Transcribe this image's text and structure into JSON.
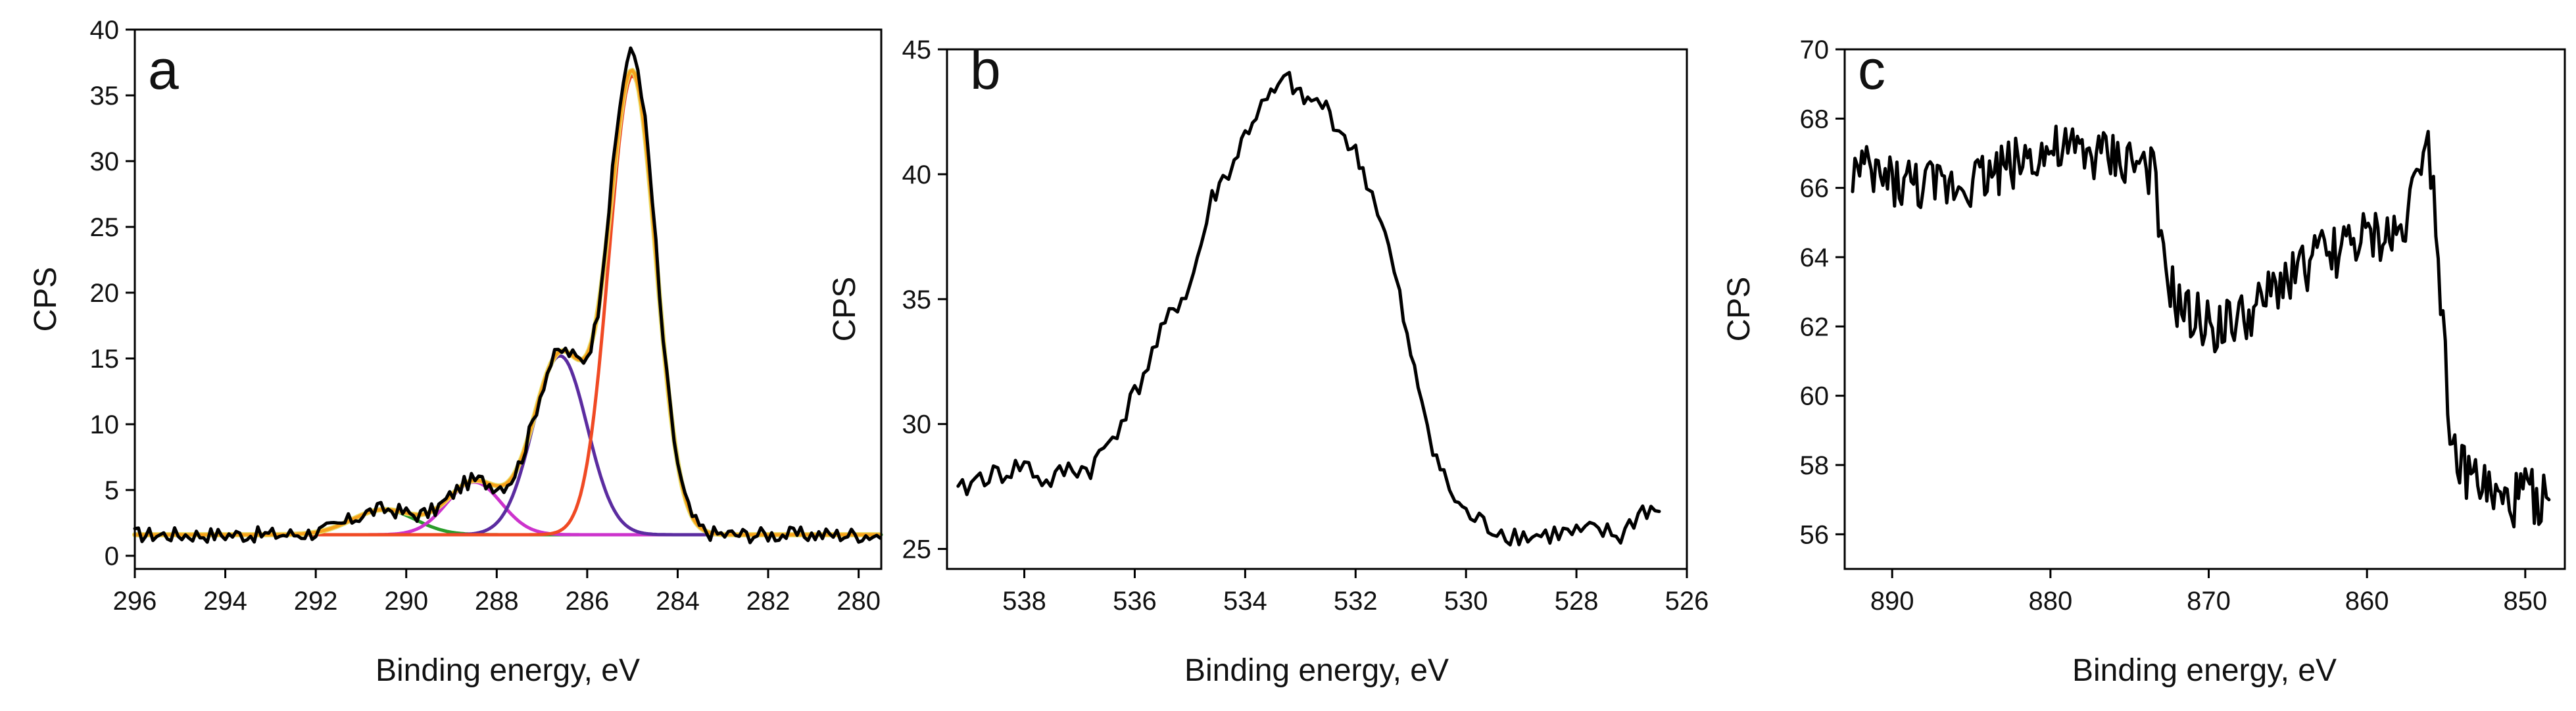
{
  "chart_data": [
    {
      "type": "line",
      "panel_label": "a",
      "xlabel": "Binding energy, eV",
      "ylabel": "CPS",
      "xlim": [
        296,
        279.5
      ],
      "ylim": [
        -1,
        40
      ],
      "x_reversed": true,
      "xticks": [
        296,
        294,
        292,
        290,
        288,
        286,
        284,
        282,
        280
      ],
      "yticks": [
        0,
        5,
        10,
        15,
        20,
        25,
        30,
        35,
        40
      ],
      "baseline": 1.6,
      "components": [
        {
          "color": "#2a9d2a",
          "center": 290.5,
          "height": 1.9,
          "sigma": 0.7
        },
        {
          "color": "#cc33cc",
          "center": 288.5,
          "height": 4.0,
          "sigma": 0.6
        },
        {
          "color": "#5b2ca0",
          "center": 286.6,
          "height": 13.6,
          "sigma": 0.6
        },
        {
          "color": "#f04a24",
          "center": 285.0,
          "height": 34.9,
          "sigma": 0.52
        }
      ],
      "envelope_colors": [
        "#f7a21b",
        "#e8e070"
      ],
      "data_color": "#000000",
      "data_peak": {
        "x": 284.9,
        "y": 38.2
      }
    },
    {
      "type": "line",
      "panel_label": "b",
      "xlabel": "Binding energy, eV",
      "ylabel": "CPS",
      "xlim": [
        539.4,
        526
      ],
      "ylim": [
        24.2,
        45
      ],
      "x_reversed": true,
      "xticks": [
        538,
        536,
        534,
        532,
        530,
        528,
        526
      ],
      "yticks": [
        25,
        30,
        35,
        40,
        45
      ],
      "data_color": "#000000",
      "series": [
        {
          "x": [
            539.2,
            538.8,
            538.4,
            538.0,
            537.6,
            537.2,
            536.8,
            536.4,
            536.0,
            535.6,
            535.3,
            535.0,
            534.8,
            534.6,
            534.4,
            534.2,
            534.0,
            533.8,
            533.6,
            533.4,
            533.2,
            533.0,
            532.8,
            532.6,
            532.4,
            532.2,
            532.0,
            531.8,
            531.6,
            531.4,
            531.2,
            531.0,
            530.8,
            530.6,
            530.4,
            530.2,
            530.0,
            529.6,
            529.2,
            528.8,
            528.4,
            528.0,
            527.6,
            527.2,
            526.8,
            526.5
          ],
          "y": [
            27.2,
            27.9,
            28.0,
            28.4,
            27.6,
            28.2,
            28.2,
            29.5,
            31.2,
            33.2,
            34.6,
            35.5,
            37.2,
            39.0,
            39.8,
            40.5,
            41.6,
            42.4,
            42.9,
            43.4,
            43.8,
            43.0,
            42.9,
            42.8,
            42.2,
            41.5,
            40.8,
            39.8,
            38.6,
            37.0,
            35.0,
            32.6,
            31.0,
            29.2,
            27.8,
            27.0,
            26.4,
            25.9,
            25.6,
            25.5,
            25.6,
            25.6,
            25.7,
            25.5,
            26.6,
            26.5
          ]
        }
      ]
    },
    {
      "type": "line",
      "panel_label": "c",
      "xlabel": "Binding energy, eV",
      "ylabel": "CPS",
      "xlim": [
        893,
        847.5
      ],
      "ylim": [
        55,
        70
      ],
      "x_reversed": true,
      "xticks": [
        890,
        880,
        870,
        860,
        850
      ],
      "yticks": [
        56,
        58,
        60,
        62,
        64,
        66,
        68,
        70
      ],
      "data_color": "#000000",
      "series": [
        {
          "x": [
            892.5,
            890,
            887,
            884,
            881,
            878,
            875,
            873.5,
            873,
            872,
            871,
            869,
            867,
            865,
            863,
            861,
            859,
            858,
            857,
            856.3,
            855.8,
            855.2,
            854.6,
            854,
            853,
            852,
            851,
            850,
            849,
            848.5
          ],
          "y": [
            66.5,
            66.2,
            66.0,
            66.4,
            67.0,
            67.0,
            66.8,
            66.5,
            64.0,
            62.6,
            62.2,
            62.0,
            62.4,
            63.5,
            64.0,
            64.4,
            64.6,
            64.6,
            66.0,
            67.8,
            66.2,
            62.0,
            58.5,
            57.8,
            57.6,
            57.0,
            56.8,
            57.2,
            57.0,
            57.0
          ]
        }
      ]
    }
  ]
}
